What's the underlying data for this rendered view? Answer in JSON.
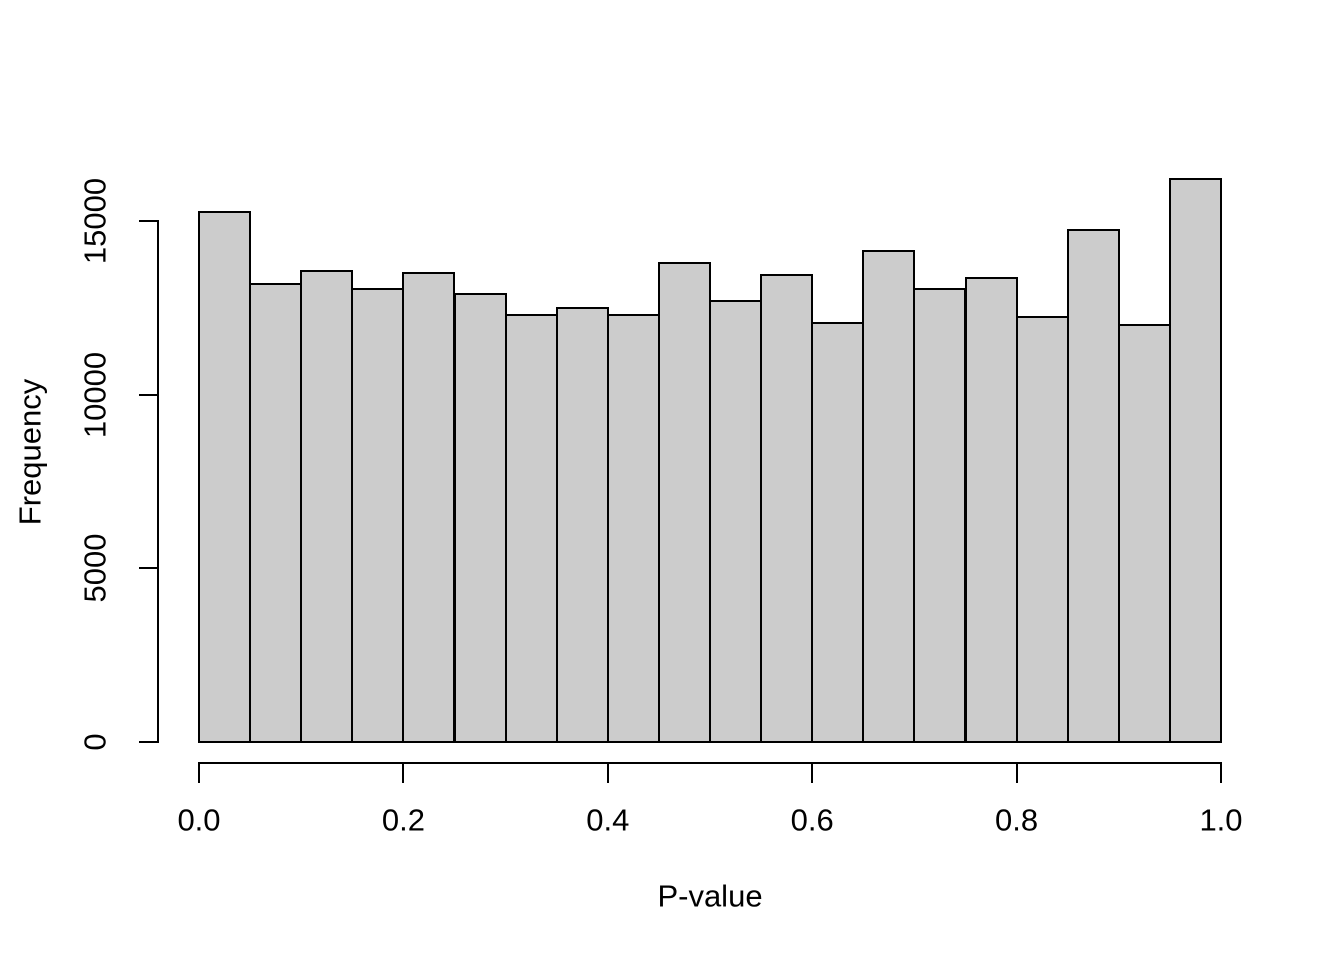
{
  "chart_data": {
    "type": "bar",
    "subtype": "histogram",
    "title": "",
    "xlabel": "P-value",
    "ylabel": "Frequency",
    "bin_start": 0.0,
    "bin_width": 0.05,
    "bin_edges": [
      0.0,
      0.05,
      0.1,
      0.15,
      0.2,
      0.25,
      0.3,
      0.35,
      0.4,
      0.45,
      0.5,
      0.55,
      0.6,
      0.65,
      0.7,
      0.75,
      0.8,
      0.85,
      0.9,
      0.95,
      1.0
    ],
    "values": [
      15250,
      13200,
      13550,
      13050,
      13500,
      12900,
      12300,
      12500,
      12300,
      13800,
      12700,
      13450,
      12050,
      14150,
      13050,
      13350,
      12250,
      14750,
      12000,
      16200
    ],
    "x_tick_values": [
      0.0,
      0.2,
      0.4,
      0.6,
      0.8,
      1.0
    ],
    "x_ticks": [
      "0.0",
      "0.2",
      "0.4",
      "0.6",
      "0.8",
      "1.0"
    ],
    "y_tick_values": [
      0,
      5000,
      10000,
      15000
    ],
    "y_ticks": [
      "0",
      "5000",
      "10000",
      "15000"
    ],
    "xlim": [
      0.0,
      1.0
    ],
    "y_axis_max": 15000,
    "grid": false,
    "legend": null,
    "colors": {
      "bar_fill": "#cccccc",
      "bar_border": "#000000",
      "axis": "#000000",
      "text": "#000000",
      "background": "#ffffff"
    }
  }
}
